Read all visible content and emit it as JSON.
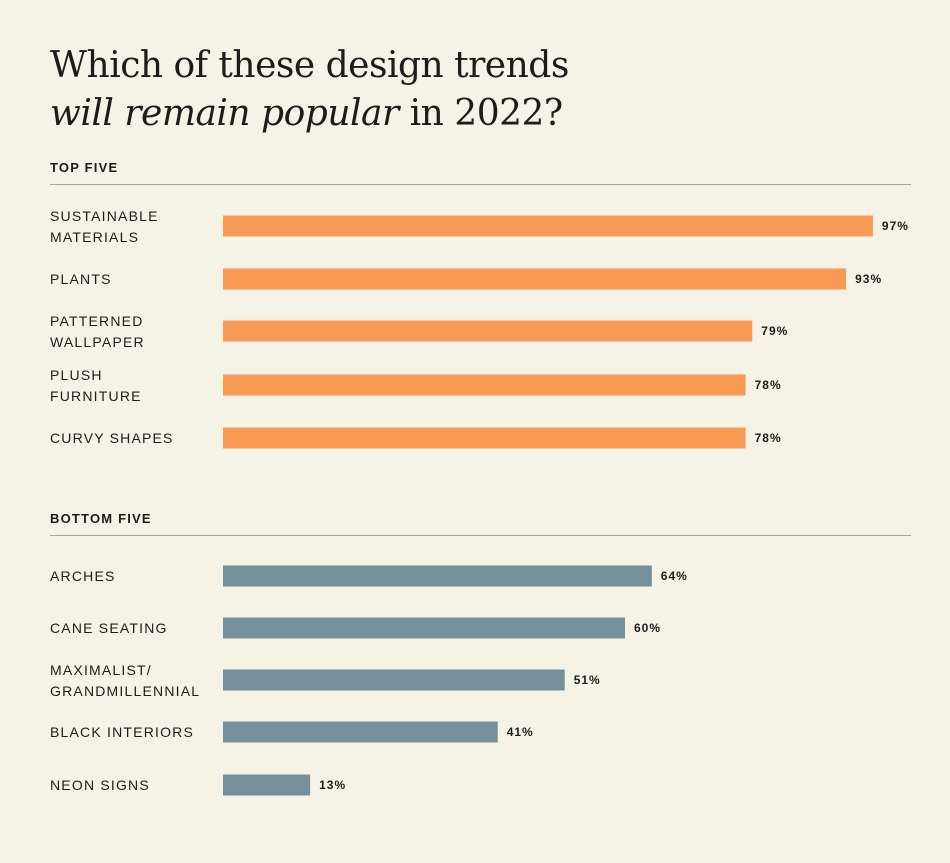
{
  "title": {
    "line1": "Which of these design trends",
    "line2_italic": "will remain popular",
    "line2_rest": " in 2022?"
  },
  "sections": {
    "top_label": "TOP FIVE",
    "bottom_label": "BOTTOM FIVE"
  },
  "colors": {
    "top_bar": "#f79a55",
    "bottom_bar": "#75909a",
    "background": "#f5f3e6"
  },
  "chart_data": [
    {
      "type": "bar",
      "orientation": "horizontal",
      "group": "TOP FIVE",
      "categories": [
        [
          "SUSTAINABLE",
          "MATERIALS"
        ],
        [
          "PLANTS"
        ],
        [
          "PATTERNED",
          "WALLPAPER"
        ],
        [
          "PLUSH",
          "FURNITURE"
        ],
        [
          "CURVY SHAPES"
        ]
      ],
      "values": [
        97,
        93,
        79,
        78,
        78
      ],
      "value_labels": [
        "97%",
        "93%",
        "79%",
        "78%",
        "78%"
      ],
      "xlim": [
        0,
        100
      ],
      "color": "#f79a55"
    },
    {
      "type": "bar",
      "orientation": "horizontal",
      "group": "BOTTOM FIVE",
      "categories": [
        [
          "ARCHES"
        ],
        [
          "CANE SEATING"
        ],
        [
          "MAXIMALIST/",
          "GRANDMILLENNIAL"
        ],
        [
          "BLACK INTERIORS"
        ],
        [
          "NEON SIGNS"
        ]
      ],
      "values": [
        64,
        60,
        51,
        41,
        13
      ],
      "value_labels": [
        "64%",
        "60%",
        "51%",
        "41%",
        "13%"
      ],
      "xlim": [
        0,
        100
      ],
      "color": "#75909a"
    }
  ]
}
